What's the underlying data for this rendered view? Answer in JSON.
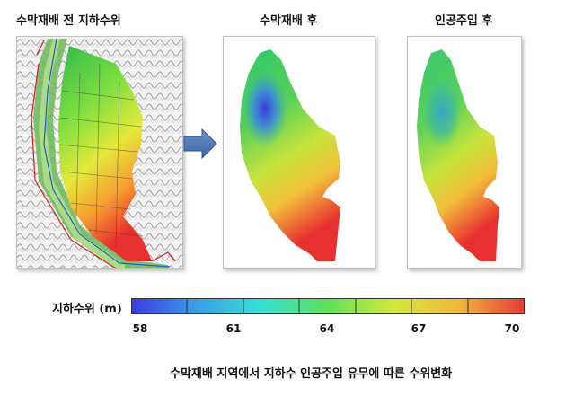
{
  "panels": {
    "before": {
      "title": "수막재배 전 지하수위"
    },
    "after_cultivation": {
      "title": "수막재배 후"
    },
    "after_injection": {
      "title": "인공주입 후"
    }
  },
  "arrow_icon": "right-arrow-icon",
  "legend": {
    "label": "지하수위 (m)",
    "ticks": [
      "58",
      "61",
      "64",
      "67",
      "70"
    ],
    "colors": [
      "#3b3be6",
      "#3aa0e6",
      "#36e0d6",
      "#5fe05a",
      "#d6e83a",
      "#f0b93a",
      "#e83a3a"
    ]
  },
  "caption": "수막재배 지역에서  지하수 인공주입 유무에 따른 수위변화"
}
